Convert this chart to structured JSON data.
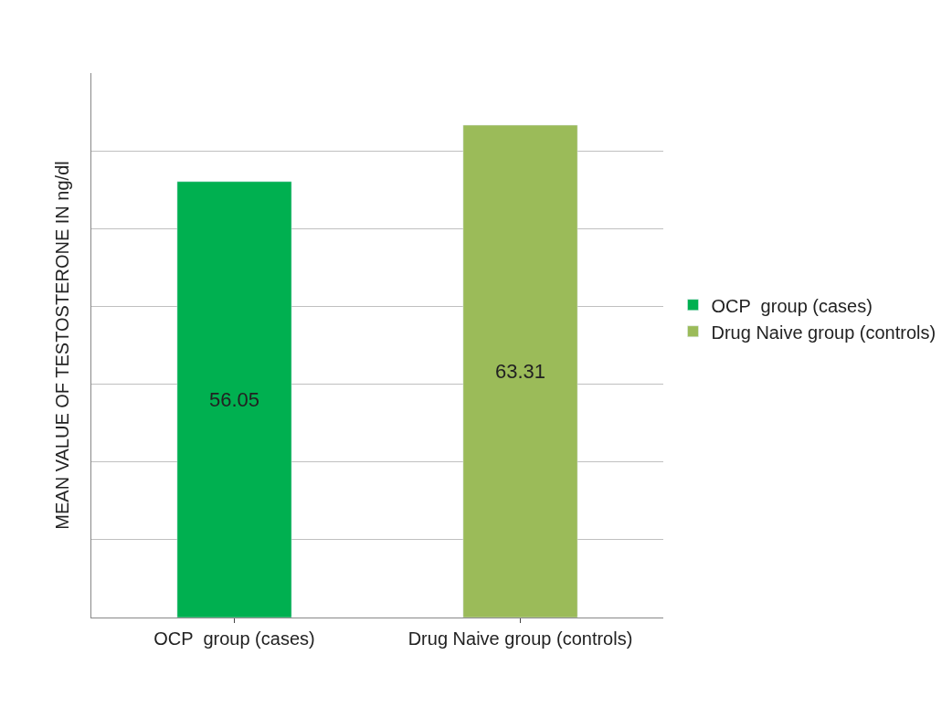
{
  "chart_data": {
    "type": "bar",
    "ylabel": "MEAN VALUE OF TESTOSTERONE IN ng/dl",
    "categories": [
      "OCP  group (cases)",
      "Drug Naive group (controls)"
    ],
    "series": [
      {
        "name": "OCP  group (cases)",
        "color": "#00b050",
        "values": [
          56.05,
          null
        ]
      },
      {
        "name": "Drug Naive group (controls)",
        "color": "#9bbb59",
        "values": [
          null,
          63.31
        ]
      }
    ],
    "data_labels": true,
    "ylim": [
      0,
      70
    ],
    "yticks": [
      {
        "value": 0,
        "label": null
      },
      {
        "value": 10,
        "label": null
      },
      {
        "value": 20,
        "label": null
      },
      {
        "value": 30,
        "label": null
      },
      {
        "value": 40,
        "label": null
      },
      {
        "value": 50,
        "label": null
      },
      {
        "value": 60,
        "label": null
      }
    ],
    "grid": "y",
    "legend": "right"
  }
}
